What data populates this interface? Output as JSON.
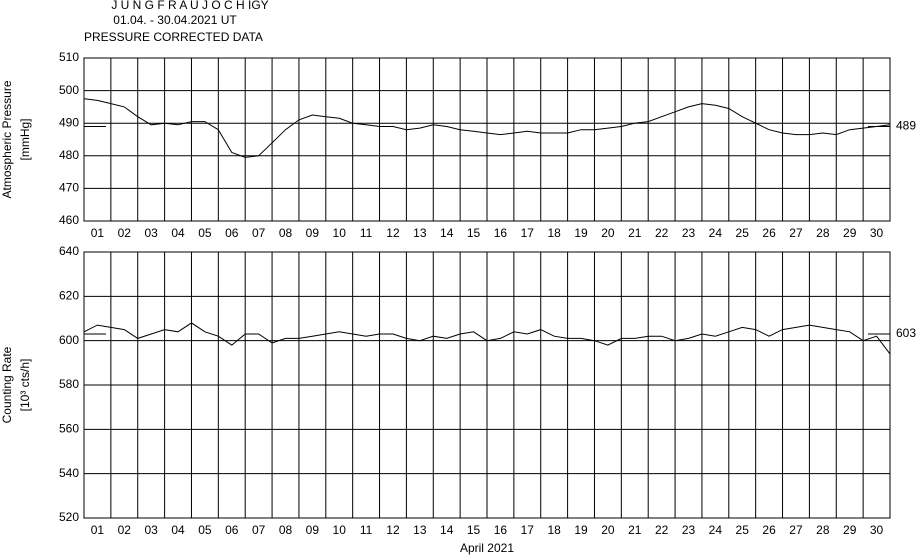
{
  "header": {
    "title": "J U N G F R A U J O C H  IGY",
    "subtitle": "01.04. - 30.04.2021  UT",
    "note": "PRESSURE CORRECTED DATA"
  },
  "chart_data": [
    {
      "type": "line",
      "ylabel": [
        "Atmospheric Pressure",
        "[mmHg]"
      ],
      "categories": [
        "01",
        "02",
        "03",
        "04",
        "05",
        "06",
        "07",
        "08",
        "09",
        "10",
        "11",
        "12",
        "13",
        "14",
        "15",
        "16",
        "17",
        "18",
        "19",
        "20",
        "21",
        "22",
        "23",
        "24",
        "25",
        "26",
        "27",
        "28",
        "29",
        "30"
      ],
      "xlim": [
        0,
        30
      ],
      "x": [
        0,
        0.5,
        1,
        1.5,
        2,
        2.5,
        3,
        3.5,
        4,
        4.5,
        5,
        5.5,
        6,
        6.5,
        7,
        7.5,
        8,
        8.5,
        9,
        9.5,
        10,
        10.5,
        11,
        11.5,
        12,
        12.5,
        13,
        13.5,
        14,
        14.5,
        15,
        15.5,
        16,
        16.5,
        17,
        17.5,
        18,
        18.5,
        19,
        19.5,
        20,
        20.5,
        21,
        21.5,
        22,
        22.5,
        23,
        23.5,
        24,
        24.5,
        25,
        25.5,
        26,
        26.5,
        27,
        27.5,
        28,
        28.5,
        29,
        29.5,
        30
      ],
      "values": [
        497.5,
        497,
        496,
        495,
        492,
        489.5,
        490,
        489.5,
        490.5,
        490.5,
        488,
        481,
        479.5,
        480,
        484,
        488,
        491,
        492.5,
        492,
        491.5,
        490,
        489.5,
        489,
        489,
        488,
        488.5,
        489.5,
        489,
        488,
        487.5,
        487,
        486.5,
        487,
        487.5,
        487,
        487,
        487,
        488,
        488,
        488.5,
        489,
        490,
        490.5,
        492,
        493.5,
        495,
        496,
        495.5,
        494.5,
        492,
        490,
        488,
        487,
        486.5,
        486.5,
        487,
        486.5,
        488,
        488.5,
        489,
        489.5
      ],
      "color": "#000000",
      "ylim": [
        460,
        510
      ],
      "yticks": [
        460,
        470,
        480,
        490,
        500,
        510
      ],
      "reference": 489,
      "grid": true
    },
    {
      "type": "line",
      "ylabel": [
        "Counting Rate",
        "[10³ cts/h]"
      ],
      "xlabel": "April 2021",
      "categories": [
        "01",
        "02",
        "03",
        "04",
        "05",
        "06",
        "07",
        "08",
        "09",
        "10",
        "11",
        "12",
        "13",
        "14",
        "15",
        "16",
        "17",
        "18",
        "19",
        "20",
        "21",
        "22",
        "23",
        "24",
        "25",
        "26",
        "27",
        "28",
        "29",
        "30"
      ],
      "xlim": [
        0,
        30
      ],
      "x": [
        0,
        0.5,
        1,
        1.5,
        2,
        2.5,
        3,
        3.5,
        4,
        4.5,
        5,
        5.5,
        6,
        6.5,
        7,
        7.5,
        8,
        8.5,
        9,
        9.5,
        10,
        10.5,
        11,
        11.5,
        12,
        12.5,
        13,
        13.5,
        14,
        14.5,
        15,
        15.5,
        16,
        16.5,
        17,
        17.5,
        18,
        18.5,
        19,
        19.5,
        20,
        20.5,
        21,
        21.5,
        22,
        22.5,
        23,
        23.5,
        24,
        24.5,
        25,
        25.5,
        26,
        26.5,
        27,
        27.5,
        28,
        28.5,
        29,
        29.5,
        30
      ],
      "values": [
        604,
        607,
        606,
        605,
        601,
        603,
        605,
        604,
        608,
        604,
        602,
        598,
        603,
        603,
        599,
        601,
        601,
        602,
        603,
        604,
        603,
        602,
        603,
        603,
        601,
        600,
        602,
        601,
        603,
        604,
        600,
        601,
        604,
        603,
        605,
        602,
        601,
        601,
        600,
        598,
        601,
        601,
        602,
        602,
        600,
        601,
        603,
        602,
        604,
        606,
        605,
        602,
        605,
        606,
        607,
        606,
        605,
        604,
        600,
        602,
        594
      ],
      "color": "#000000",
      "ylim": [
        520,
        640
      ],
      "yticks": [
        520,
        540,
        560,
        580,
        600,
        620,
        640
      ],
      "reference": 603,
      "grid": true
    }
  ]
}
